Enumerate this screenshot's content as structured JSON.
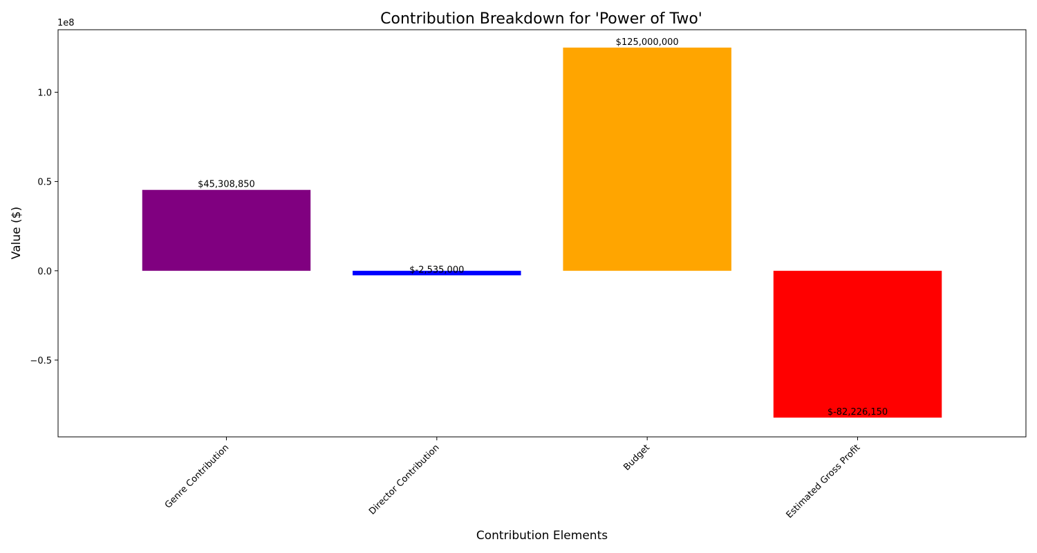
{
  "chart_data": {
    "type": "bar",
    "title": "Contribution Breakdown for 'Power of Two'",
    "xlabel": "Contribution Elements",
    "ylabel": "Value ($)",
    "y_offset_text": "1e8",
    "categories": [
      "Genre Contribution",
      "Director Contribution",
      "Budget",
      "Estimated Gross Profit"
    ],
    "values": [
      45308850,
      -2535000,
      125000000,
      -82226150
    ],
    "value_labels": [
      "$45,308,850",
      "$-2,535,000",
      "$125,000,000",
      "$-82,226,150"
    ],
    "colors": [
      "#800080",
      "#0000ff",
      "#ffa500",
      "#ff0000"
    ],
    "ylim": [
      -93000000,
      135000000
    ],
    "yticks": [
      -50000000,
      0,
      50000000,
      100000000
    ],
    "ytick_labels": [
      "−0.5",
      "0.0",
      "0.5",
      "1.0"
    ],
    "grid": false,
    "xtick_rotation": 45
  }
}
